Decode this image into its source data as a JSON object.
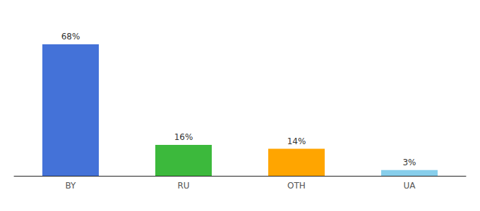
{
  "chart_data": {
    "type": "bar",
    "categories": [
      "BY",
      "RU",
      "OTH",
      "UA"
    ],
    "values": [
      68,
      16,
      14,
      3
    ],
    "value_labels": [
      "68%",
      "16%",
      "14%",
      "3%"
    ],
    "data_labels": true,
    "colors": [
      "#4472D8",
      "#3CB93C",
      "#FFA500",
      "#87CEEB"
    ],
    "ylim": [
      0,
      80
    ],
    "grid": false,
    "tick_labels": "x"
  }
}
